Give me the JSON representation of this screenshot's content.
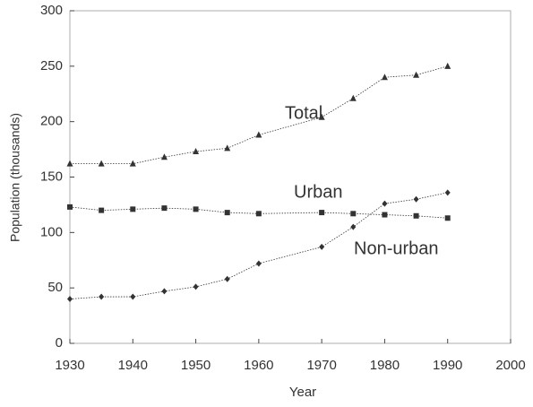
{
  "chart_data": {
    "type": "line",
    "x": [
      1930,
      1935,
      1940,
      1945,
      1950,
      1955,
      1960,
      1970,
      1975,
      1980,
      1985,
      1990
    ],
    "series": [
      {
        "name": "Total",
        "color": "#333333",
        "marker": "triangle",
        "values": [
          162,
          162,
          162,
          168,
          173,
          176,
          188,
          204,
          221,
          240,
          242,
          250
        ]
      },
      {
        "name": "Urban",
        "color": "#333333",
        "marker": "square",
        "values": [
          123,
          120,
          121,
          122,
          121,
          118,
          117,
          118,
          117,
          116,
          115,
          113
        ]
      },
      {
        "name": "Non-urban",
        "color": "#333333",
        "marker": "diamond",
        "values": [
          40,
          42,
          42,
          47,
          51,
          58,
          72,
          87,
          105,
          126,
          130,
          136
        ]
      }
    ],
    "xlabel": "Year",
    "ylabel": "Population (thousands)",
    "xlim": [
      1930,
      2000
    ],
    "xticks": [
      1930,
      1940,
      1950,
      1960,
      1970,
      1980,
      1990,
      2000
    ],
    "ylim": [
      0,
      300
    ],
    "yticks": [
      0,
      50,
      100,
      150,
      200,
      250,
      300
    ]
  }
}
